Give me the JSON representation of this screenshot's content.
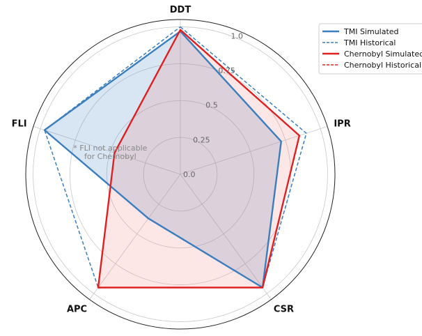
{
  "chart_data": {
    "type": "radar",
    "axes": [
      "DDT",
      "IPR",
      "CSR",
      "APC",
      "FLI"
    ],
    "rlim": [
      0,
      1.05
    ],
    "radial_ticks": [
      0.0,
      0.25,
      0.5,
      0.75,
      1.0
    ],
    "radial_tick_labels": [
      "0.0",
      "0.25",
      "0.5",
      "0.75",
      "1.0"
    ],
    "grid": true,
    "legend_position": "top-right",
    "series": [
      {
        "name": "TMI Simulated",
        "values": [
          0.97,
          0.72,
          0.95,
          0.37,
          0.97
        ],
        "color": "#3a7ebf",
        "dashed": false,
        "fill": true,
        "fill_color": "#3a7ebf"
      },
      {
        "name": "TMI Historical",
        "values": [
          1.0,
          0.9,
          0.95,
          0.95,
          0.97
        ],
        "color": "#3a7ebf",
        "dashed": true,
        "fill": false
      },
      {
        "name": "Chernobyl Simulated",
        "values": [
          0.98,
          0.85,
          0.95,
          0.95,
          0.47
        ],
        "color": "#e02020",
        "dashed": false,
        "fill": true,
        "fill_color": "#f08080"
      },
      {
        "name": "Chernobyl Historical",
        "values": [
          0.98,
          0.85,
          0.95,
          0.95,
          0.47
        ],
        "color": "#e02020",
        "dashed": true,
        "fill": false
      }
    ],
    "annotations": [
      {
        "text_lines": [
          "* FLI not applicable",
          "for Chernobyl"
        ],
        "anchor_axis": "FLI",
        "anchor_value": 0.6
      }
    ]
  }
}
